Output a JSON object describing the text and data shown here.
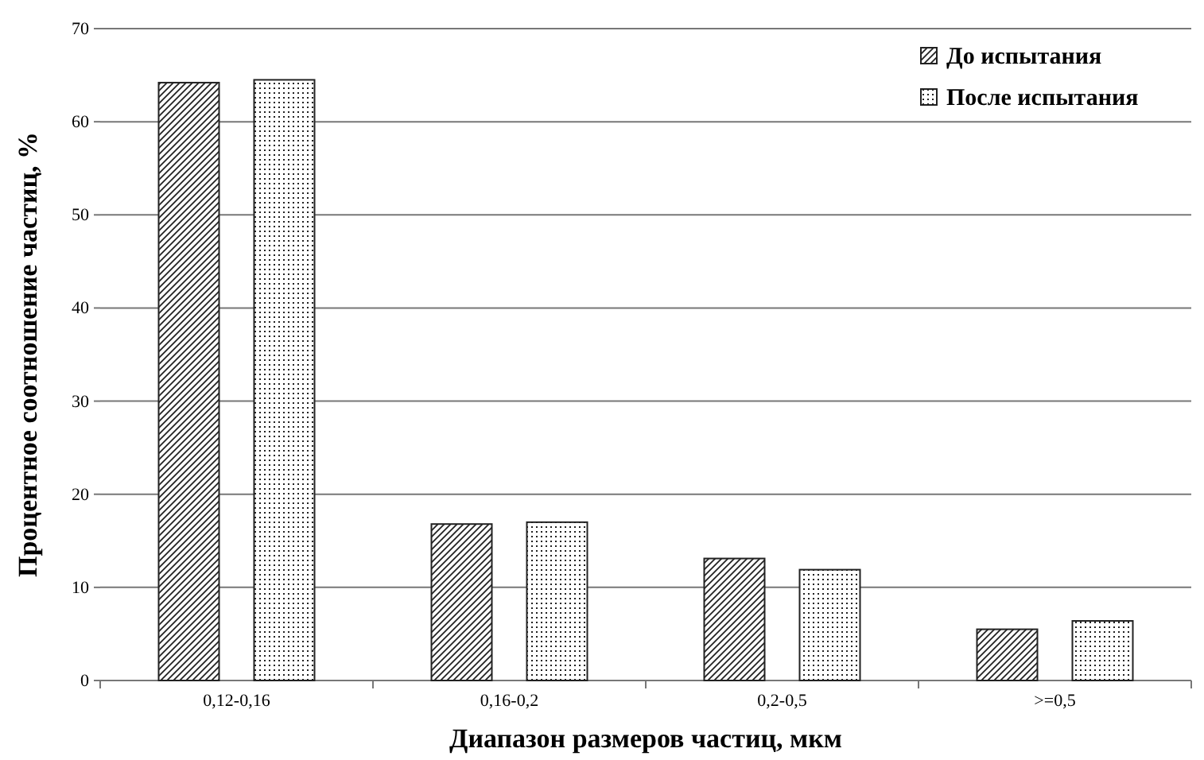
{
  "chart_data": {
    "type": "bar",
    "xlabel": "Диапазон размеров частиц, мкм",
    "ylabel": "Процентное соотношение частиц, %",
    "categories": [
      "0,12-0,16",
      "0,16-0,2",
      "0,2-0,5",
      ">=0,5"
    ],
    "series": [
      {
        "name": "До испытания",
        "color": "#222222",
        "values": [
          64.2,
          16.8,
          13.1,
          5.5
        ]
      },
      {
        "name": "После испытания",
        "color": "#222222",
        "values": [
          64.5,
          17.0,
          11.9,
          6.4
        ]
      }
    ],
    "ylim": [
      0,
      70
    ],
    "yticks": [
      0,
      10,
      20,
      30,
      40,
      50,
      60,
      70
    ],
    "grid": "y",
    "legend": "top right"
  }
}
